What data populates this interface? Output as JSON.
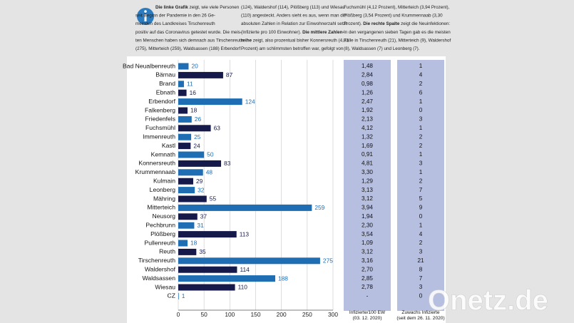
{
  "header": {
    "columns": [
      [
        [
          {
            "text": "Die linke Grafik",
            "bold": true
          },
          {
            "text": " zeigt, wie viele Personen",
            "bold": false
          }
        ],
        [
          {
            "text": "seit Beginn der Pandemie in den 26 Ge-",
            "bold": false
          }
        ],
        [
          {
            "text": "meinden des Landkreises Tirschenreuth",
            "bold": false
          }
        ],
        [
          {
            "text": "positiv auf das Coronavirus getestet wurde. Die meis-",
            "bold": false
          }
        ],
        [
          {
            "text": "ten Menschen haben sich demnach aus Tirschenreuth",
            "bold": false
          }
        ],
        [
          {
            "text": "(275), Mitterteich (259), Waldsassen (188) Erbendorf",
            "bold": false
          }
        ]
      ],
      [
        [
          {
            "text": "(124), Waldershof (114), Plößberg (113) und Wiesau",
            "bold": false
          }
        ],
        [
          {
            "text": "(110) angesteckt. Anders sieht es aus, wenn man die",
            "bold": false
          }
        ],
        [
          {
            "text": "absoluten Zahlen in Relation zur Einwohnerzahl setzt",
            "bold": false
          }
        ],
        [
          {
            "text": "(Infizierte pro 100 Einwohner). ",
            "bold": false
          },
          {
            "text": "Die mittlere Zahlen-",
            "bold": true
          }
        ],
        [
          {
            "text": "reihe",
            "bold": true
          },
          {
            "text": " zeigt, also prozentual bisher Konnersreuth (4,81",
            "bold": false
          }
        ],
        [
          {
            "text": "Prozent) am schlimmsten betroffen war, gefolgt von",
            "bold": false
          }
        ]
      ],
      [
        [
          {
            "text": "Fuchsmühl (4,12 Prozent), Mitterteich (3,94 Prozent),",
            "bold": false
          }
        ],
        [
          {
            "text": "Plößberg (3,54 Prozent) und Krummennaab (3,30",
            "bold": false
          }
        ],
        [
          {
            "text": "Prozent). ",
            "bold": false
          },
          {
            "text": "Die rechte Spalte",
            "bold": true
          },
          {
            "text": " zeigt die Neuinfektionen:",
            "bold": false
          }
        ],
        [
          {
            "text": "In den vergangenen sieben Tagen gab es die meisten",
            "bold": false
          }
        ],
        [
          {
            "text": "Fälle in Tirschenreuth (21), Mitterteich (9), Waldershof",
            "bold": false
          }
        ],
        [
          {
            "text": "(8), Waldsassen (7) und Leonberg (7).",
            "bold": false
          }
        ]
      ]
    ]
  },
  "chart_data": {
    "type": "bar",
    "orientation": "horizontal",
    "categories": [
      "Bad Neualbenreuth",
      "Bärnau",
      "Brand",
      "Ebnath",
      "Erbendorf",
      "Falkenberg",
      "Friedenfels",
      "Fuchsmühl",
      "Immenreuth",
      "Kastl",
      "Kemnath",
      "Konnersreuth",
      "Krummennaab",
      "Kulmain",
      "Leonberg",
      "Mähring",
      "Mitterteich",
      "Neusorg",
      "Pechbrunn",
      "Plößberg",
      "Pullenreuth",
      "Reuth",
      "Tirschenreuth",
      "Waldershof",
      "Waldsassen",
      "Wiesau",
      "CZ"
    ],
    "values": [
      20,
      87,
      11,
      16,
      124,
      18,
      26,
      63,
      25,
      24,
      50,
      83,
      48,
      29,
      32,
      55,
      259,
      37,
      31,
      113,
      18,
      35,
      275,
      114,
      188,
      110,
      1
    ],
    "colors": [
      "#1f6db3",
      "#161a4a"
    ],
    "xlim": [
      0,
      300
    ],
    "xticks": [
      0,
      50,
      100,
      150,
      200,
      250,
      300
    ],
    "grid": true
  },
  "table": {
    "columns": [
      {
        "header": [
          "Infizierte/100 EW",
          "(03. 12. 2020)"
        ],
        "values": [
          "1,48",
          "2,84",
          "0,98",
          "1,26",
          "2,47",
          "1,92",
          "2,13",
          "4,12",
          "1,32",
          "1,69",
          "0,91",
          "4,81",
          "3,30",
          "1,29",
          "3,13",
          "3,12",
          "3,94",
          "1,94",
          "2,30",
          "3,54",
          "1,09",
          "3,12",
          "3,16",
          "2,70",
          "2,85",
          "2,78",
          "-"
        ]
      },
      {
        "header": [
          "Zuwachs Infizierte",
          "(seit dem 26. 11. 2020)"
        ],
        "values": [
          1,
          4,
          2,
          6,
          1,
          0,
          3,
          1,
          2,
          2,
          1,
          3,
          1,
          2,
          7,
          5,
          9,
          0,
          1,
          4,
          2,
          3,
          21,
          8,
          7,
          3,
          0
        ]
      }
    ]
  },
  "watermark": "Onetz.de"
}
